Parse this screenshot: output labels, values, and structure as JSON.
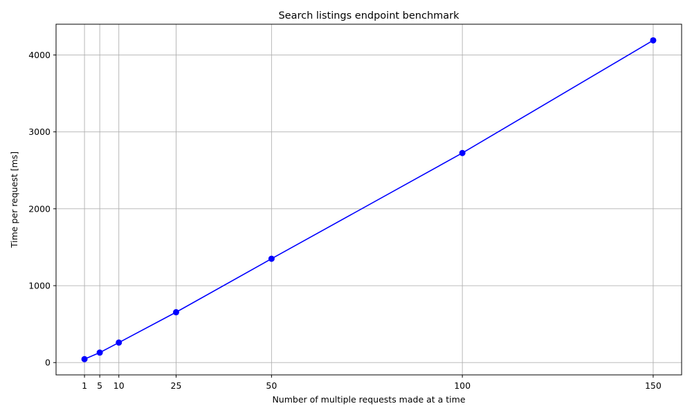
{
  "chart_data": {
    "type": "line",
    "title": "Search listings endpoint benchmark",
    "xlabel": "Number of multiple requests made at a time",
    "ylabel": "Time per request [ms]",
    "xlim": [
      -6.45,
      157.45
    ],
    "ylim": [
      -160,
      4400
    ],
    "xticks": [
      1,
      5,
      10,
      25,
      50,
      100,
      150
    ],
    "yticks": [
      0,
      1000,
      2000,
      3000,
      4000
    ],
    "grid": true,
    "series": [
      {
        "color": "#0000ff",
        "marker": "circle",
        "x": [
          1,
          5,
          10,
          25,
          50,
          100,
          150
        ],
        "y": [
          45,
          130,
          260,
          655,
          1350,
          2725,
          4190
        ]
      }
    ]
  }
}
